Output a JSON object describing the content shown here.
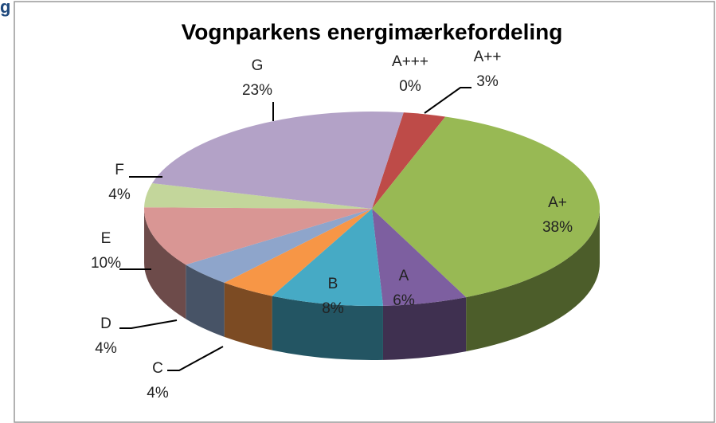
{
  "header": {
    "fragment": "g"
  },
  "chart_data": {
    "type": "pie3d",
    "title": "Vognparkens energimærkefordeling",
    "categories": [
      "A+++",
      "A++",
      "A+",
      "A",
      "B",
      "C",
      "D",
      "E",
      "F",
      "G"
    ],
    "values": [
      0,
      3,
      38,
      6,
      8,
      4,
      4,
      10,
      4,
      23
    ],
    "value_labels": [
      "0%",
      "3%",
      "38%",
      "6%",
      "8%",
      "4%",
      "4%",
      "10%",
      "4%",
      "23%"
    ],
    "colors": [
      "#4f81bd",
      "#be4b48",
      "#98b954",
      "#7d5fa0",
      "#46aac5",
      "#f79646",
      "#8ea5cb",
      "#d99694",
      "#c3d69b",
      "#b3a2c7"
    ]
  }
}
